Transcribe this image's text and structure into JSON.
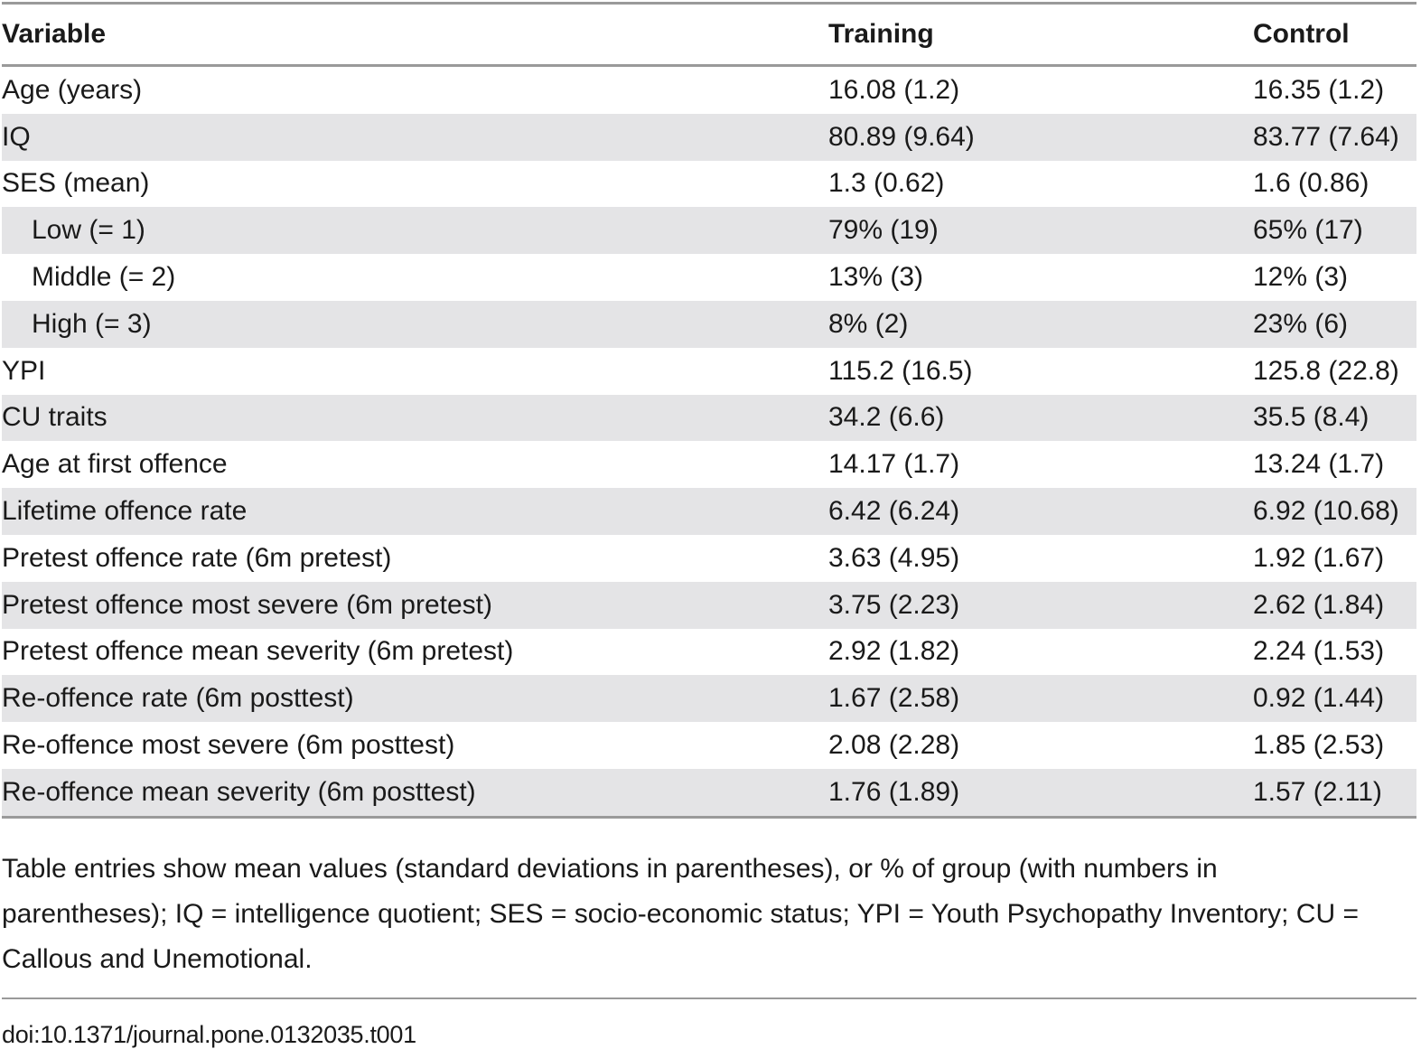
{
  "table": {
    "headers": [
      "Variable",
      "Training",
      "Control"
    ],
    "rows": [
      {
        "variable": "Age (years)",
        "training": "16.08 (1.2)",
        "control": "16.35 (1.2)",
        "indent": false
      },
      {
        "variable": "IQ",
        "training": "80.89 (9.64)",
        "control": "83.77 (7.64)",
        "indent": false
      },
      {
        "variable": "SES (mean)",
        "training": "1.3 (0.62)",
        "control": "1.6 (0.86)",
        "indent": false
      },
      {
        "variable": "Low (= 1)",
        "training": "79% (19)",
        "control": "65% (17)",
        "indent": true
      },
      {
        "variable": "Middle (= 2)",
        "training": "13% (3)",
        "control": "12% (3)",
        "indent": true
      },
      {
        "variable": "High (= 3)",
        "training": "8% (2)",
        "control": "23% (6)",
        "indent": true
      },
      {
        "variable": "YPI",
        "training": "115.2 (16.5)",
        "control": "125.8 (22.8)",
        "indent": false
      },
      {
        "variable": "CU traits",
        "training": "34.2 (6.6)",
        "control": "35.5 (8.4)",
        "indent": false
      },
      {
        "variable": "Age at first offence",
        "training": "14.17 (1.7)",
        "control": "13.24 (1.7)",
        "indent": false
      },
      {
        "variable": "Lifetime offence rate",
        "training": "6.42 (6.24)",
        "control": "6.92 (10.68)",
        "indent": false
      },
      {
        "variable": "Pretest offence rate (6m pretest)",
        "training": "3.63 (4.95)",
        "control": "1.92 (1.67)",
        "indent": false
      },
      {
        "variable": "Pretest offence most severe (6m pretest)",
        "training": "3.75 (2.23)",
        "control": "2.62 (1.84)",
        "indent": false
      },
      {
        "variable": "Pretest offence mean severity (6m pretest)",
        "training": "2.92 (1.82)",
        "control": "2.24 (1.53)",
        "indent": false
      },
      {
        "variable": "Re-offence rate (6m posttest)",
        "training": "1.67 (2.58)",
        "control": "0.92 (1.44)",
        "indent": false
      },
      {
        "variable": "Re-offence most severe (6m posttest)",
        "training": "2.08 (2.28)",
        "control": "1.85 (2.53)",
        "indent": false
      },
      {
        "variable": "Re-offence mean severity (6m posttest)",
        "training": "1.76 (1.89)",
        "control": "1.57 (2.11)",
        "indent": false
      }
    ]
  },
  "footnote": "Table entries show mean values (standard deviations in parentheses), or % of group (with numbers in parentheses); IQ = intelligence quotient; SES = socio-economic status; YPI = Youth Psychopathy Inventory; CU = Callous and Unemotional.",
  "doi": "doi:10.1371/journal.pone.0132035.t001"
}
